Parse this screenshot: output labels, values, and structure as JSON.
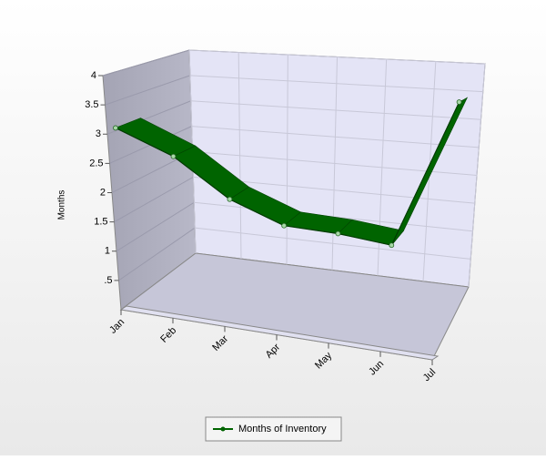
{
  "chart_data": {
    "type": "line",
    "y_label": "Months",
    "categories": [
      "Jan",
      "Feb",
      "Mar",
      "Apr",
      "May",
      "Jun",
      "Jul"
    ],
    "series": [
      {
        "name": "Months of Inventory",
        "color": "#006400",
        "values": [
          3.05,
          2.6,
          1.95,
          1.6,
          1.55,
          1.45,
          3.55
        ]
      }
    ],
    "ylim": [
      0,
      4
    ],
    "yticks": [
      {
        "value": 0.5,
        "label": ".5"
      },
      1,
      1.5,
      2,
      2.5,
      3,
      3.5,
      4
    ],
    "grid": true
  }
}
